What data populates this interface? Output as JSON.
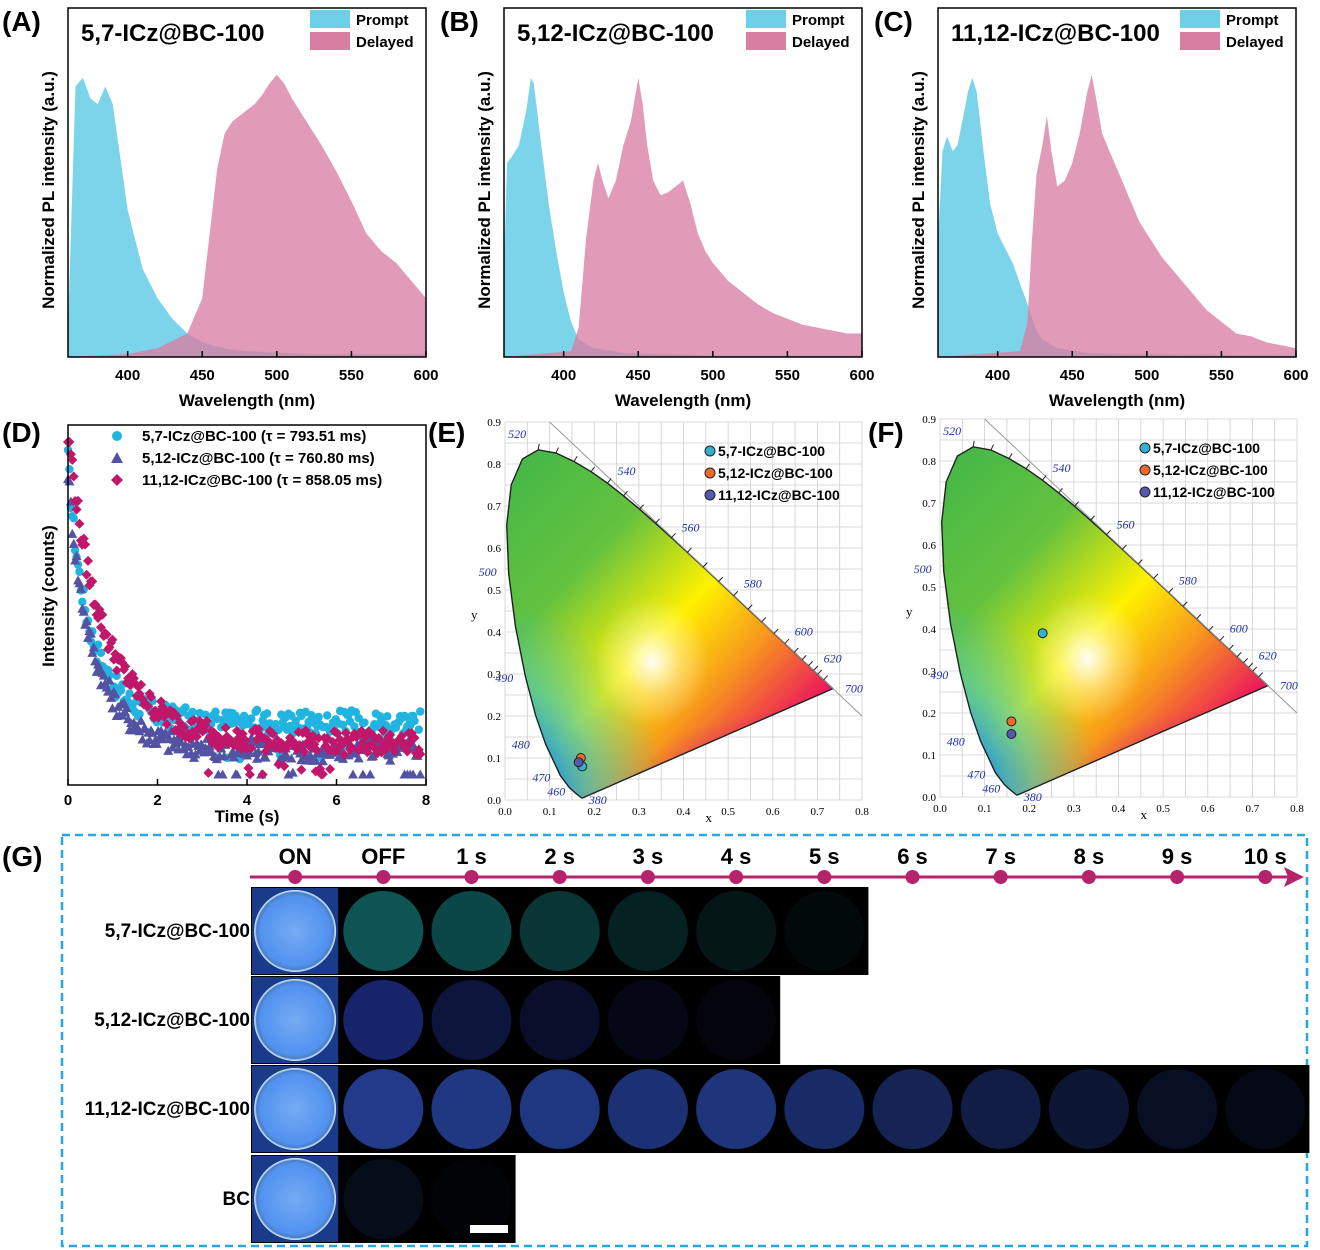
{
  "panels": {
    "A": {
      "letter": "(A)",
      "title": "5,7-ICz@BC-100"
    },
    "B": {
      "letter": "(B)",
      "title": "5,12-ICz@BC-100"
    },
    "C": {
      "letter": "(C)",
      "title": "11,12-ICz@BC-100"
    },
    "D": {
      "letter": "(D)"
    },
    "E": {
      "letter": "(E)"
    },
    "F": {
      "letter": "(F)"
    },
    "G": {
      "letter": "(G)"
    }
  },
  "colors": {
    "prompt": "#6ecfe9",
    "delayed": "#d97ea3",
    "s57": "#22b4e0",
    "s512": "#5352a3",
    "s1112": "#c0176b",
    "cie_s57": "#2fb3cf",
    "cie_s512": "#ef6a2d",
    "cie_s1112": "#5658b0",
    "timeline": "#b5236b",
    "dash_border": "#2aa7dd"
  },
  "chart_data": [
    {
      "type": "area",
      "panel": "A",
      "title": "5,7-ICz@BC-100",
      "xlabel": "Wavelength (nm)",
      "ylabel": "Normalized PL intensity (a.u.)",
      "xlim": [
        360,
        600
      ],
      "xticks": [
        400,
        450,
        500,
        550,
        600
      ],
      "legend": [
        "Prompt",
        "Delayed"
      ],
      "legend_position": "top-right",
      "series": [
        {
          "name": "Prompt",
          "x": [
            360,
            365,
            370,
            375,
            380,
            385,
            390,
            395,
            400,
            410,
            420,
            430,
            440,
            450,
            460,
            470,
            480,
            500,
            520,
            550,
            600
          ],
          "y": [
            0.1,
            0.92,
            0.95,
            0.88,
            0.86,
            0.92,
            0.86,
            0.68,
            0.5,
            0.3,
            0.2,
            0.13,
            0.08,
            0.05,
            0.035,
            0.025,
            0.02,
            0.015,
            0.01,
            0.01,
            0.01
          ]
        },
        {
          "name": "Delayed",
          "x": [
            360,
            400,
            420,
            440,
            450,
            455,
            460,
            465,
            470,
            475,
            480,
            485,
            490,
            495,
            500,
            505,
            510,
            520,
            530,
            540,
            550,
            560,
            570,
            580,
            590,
            600
          ],
          "y": [
            0.0,
            0.01,
            0.03,
            0.08,
            0.2,
            0.42,
            0.64,
            0.76,
            0.8,
            0.82,
            0.84,
            0.86,
            0.89,
            0.93,
            0.96,
            0.93,
            0.88,
            0.8,
            0.72,
            0.63,
            0.53,
            0.42,
            0.36,
            0.32,
            0.26,
            0.2
          ]
        }
      ]
    },
    {
      "type": "area",
      "panel": "B",
      "title": "5,12-ICz@BC-100",
      "xlabel": "Wavelength (nm)",
      "ylabel": "Normalized PL intensity (a.u.)",
      "xlim": [
        360,
        600
      ],
      "xticks": [
        400,
        450,
        500,
        550,
        600
      ],
      "legend": [
        "Prompt",
        "Delayed"
      ],
      "legend_position": "top-right",
      "series": [
        {
          "name": "Prompt",
          "x": [
            360,
            362,
            365,
            370,
            375,
            378,
            380,
            385,
            390,
            395,
            400,
            405,
            410,
            420,
            440,
            460,
            480,
            500,
            600
          ],
          "y": [
            0.3,
            0.66,
            0.68,
            0.72,
            0.84,
            0.95,
            0.93,
            0.72,
            0.52,
            0.36,
            0.22,
            0.12,
            0.06,
            0.03,
            0.015,
            0.01,
            0.008,
            0.005,
            0.005
          ]
        },
        {
          "name": "Delayed",
          "x": [
            360,
            405,
            410,
            415,
            418,
            420,
            423,
            426,
            430,
            435,
            440,
            445,
            450,
            453,
            456,
            460,
            465,
            470,
            475,
            480,
            485,
            490,
            495,
            500,
            510,
            520,
            530,
            540,
            550,
            560,
            570,
            580,
            590
          ],
          "y": [
            0.0,
            0.02,
            0.1,
            0.4,
            0.52,
            0.6,
            0.66,
            0.6,
            0.54,
            0.6,
            0.72,
            0.8,
            0.95,
            0.86,
            0.72,
            0.6,
            0.55,
            0.56,
            0.58,
            0.6,
            0.52,
            0.42,
            0.36,
            0.32,
            0.26,
            0.22,
            0.18,
            0.15,
            0.13,
            0.11,
            0.1,
            0.09,
            0.08
          ]
        }
      ]
    },
    {
      "type": "area",
      "panel": "C",
      "title": "11,12-ICz@BC-100",
      "xlabel": "Wavelength (nm)",
      "ylabel": "Normalized PL intensity (a.u.)",
      "xlim": [
        360,
        600
      ],
      "xticks": [
        400,
        450,
        500,
        550,
        600
      ],
      "legend": [
        "Prompt",
        "Delayed"
      ],
      "legend_position": "top-right",
      "series": [
        {
          "name": "Prompt",
          "x": [
            360,
            363,
            366,
            370,
            373,
            377,
            380,
            383,
            386,
            390,
            395,
            400,
            410,
            420,
            425,
            430,
            440,
            460,
            480,
            600
          ],
          "y": [
            0.4,
            0.7,
            0.75,
            0.7,
            0.72,
            0.82,
            0.9,
            0.95,
            0.9,
            0.72,
            0.52,
            0.42,
            0.32,
            0.18,
            0.1,
            0.06,
            0.03,
            0.015,
            0.01,
            0.005
          ]
        },
        {
          "name": "Delayed",
          "x": [
            360,
            415,
            420,
            423,
            426,
            430,
            433,
            436,
            440,
            445,
            450,
            455,
            460,
            463,
            466,
            470,
            475,
            480,
            485,
            490,
            495,
            500,
            510,
            520,
            530,
            540,
            550,
            560,
            570,
            580,
            590,
            600
          ],
          "y": [
            0.0,
            0.02,
            0.12,
            0.4,
            0.62,
            0.72,
            0.82,
            0.7,
            0.58,
            0.6,
            0.66,
            0.76,
            0.9,
            0.96,
            0.88,
            0.76,
            0.7,
            0.64,
            0.58,
            0.52,
            0.46,
            0.42,
            0.34,
            0.28,
            0.22,
            0.16,
            0.12,
            0.08,
            0.07,
            0.05,
            0.04,
            0.03
          ]
        }
      ]
    },
    {
      "type": "scatter",
      "panel": "D",
      "xlabel": "Time (s)",
      "ylabel": "Intensity (counts)",
      "xlim": [
        0,
        8
      ],
      "xticks": [
        0,
        2,
        4,
        6,
        8
      ],
      "series": [
        {
          "name": "5,7-ICz@BC-100",
          "tau": "793.51",
          "legend_label": "5,7-ICz@BC-100 (τ = 793.51 ms)",
          "marker": "circle",
          "floor": 0.18,
          "amp": 0.55,
          "k": 1.6
        },
        {
          "name": "5,12-ICz@BC-100",
          "tau": "760.80",
          "legend_label": "5,12-ICz@BC-100 (τ = 760.80 ms)",
          "marker": "triangle",
          "floor": 0.1,
          "amp": 0.6,
          "k": 1.4
        },
        {
          "name": "11,12-ICz@BC-100",
          "tau": "858.05",
          "legend_label": "11,12-ICz@BC-100 (τ = 858.05 ms)",
          "marker": "diamond",
          "floor": 0.12,
          "amp": 0.7,
          "k": 1.0
        }
      ]
    },
    {
      "type": "scatter",
      "panel": "E",
      "subtype": "cie1931",
      "xlabel": "x",
      "ylabel": "y",
      "xlim": [
        0,
        0.8
      ],
      "ylim": [
        0,
        0.9
      ],
      "legend_position": "top-right",
      "points": [
        {
          "name": "5,7-ICz@BC-100",
          "x": 0.173,
          "y": 0.08
        },
        {
          "name": "5,12-ICz@BC-100",
          "x": 0.17,
          "y": 0.1
        },
        {
          "name": "11,12-ICz@BC-100",
          "x": 0.165,
          "y": 0.09
        }
      ]
    },
    {
      "type": "scatter",
      "panel": "F",
      "subtype": "cie1931",
      "xlabel": "x",
      "ylabel": "y",
      "xlim": [
        0,
        0.8
      ],
      "ylim": [
        0,
        0.9
      ],
      "legend_position": "top-right",
      "points": [
        {
          "name": "5,7-ICz@BC-100",
          "x": 0.23,
          "y": 0.39
        },
        {
          "name": "5,12-ICz@BC-100",
          "x": 0.16,
          "y": 0.18
        },
        {
          "name": "11,12-ICz@BC-100",
          "x": 0.16,
          "y": 0.15
        }
      ]
    }
  ],
  "cie_axes": {
    "xticks": [
      "0.0",
      "0.1",
      "0.2",
      "0.3",
      "0.4",
      "0.5",
      "0.6",
      "0.7",
      "0.8"
    ],
    "yticks": [
      "0.0",
      "0.1",
      "0.2",
      "0.3",
      "0.4",
      "0.5",
      "0.6",
      "0.7",
      "0.8",
      "0.9"
    ],
    "wavelength_labels": [
      "380",
      "460",
      "470",
      "480",
      "490",
      "500",
      "520",
      "540",
      "560",
      "580",
      "600",
      "620",
      "700"
    ]
  },
  "photo_grid": {
    "time_labels": [
      "ON",
      "OFF",
      "1 s",
      "2 s",
      "3 s",
      "4 s",
      "5 s",
      "6 s",
      "7 s",
      "8 s",
      "9 s",
      "10 s"
    ],
    "rows": [
      {
        "label": "5,7-ICz@BC-100",
        "tint": "#1fb6b6",
        "brightness": [
          1.0,
          0.62,
          0.52,
          0.38,
          0.24,
          0.16,
          0.07
        ]
      },
      {
        "label": "5,12-ICz@BC-100",
        "tint": "#3350e8",
        "brightness": [
          1.0,
          0.6,
          0.34,
          0.24,
          0.12,
          0.07
        ]
      },
      {
        "label": "11,12-ICz@BC-100",
        "tint": "#3a64ec",
        "brightness": [
          1.0,
          0.78,
          0.74,
          0.72,
          0.66,
          0.7,
          0.58,
          0.48,
          0.38,
          0.28,
          0.2,
          0.12
        ]
      },
      {
        "label": "BC",
        "tint": "#2f78e0",
        "brightness": [
          1.0,
          0.14,
          0.04
        ]
      }
    ]
  }
}
